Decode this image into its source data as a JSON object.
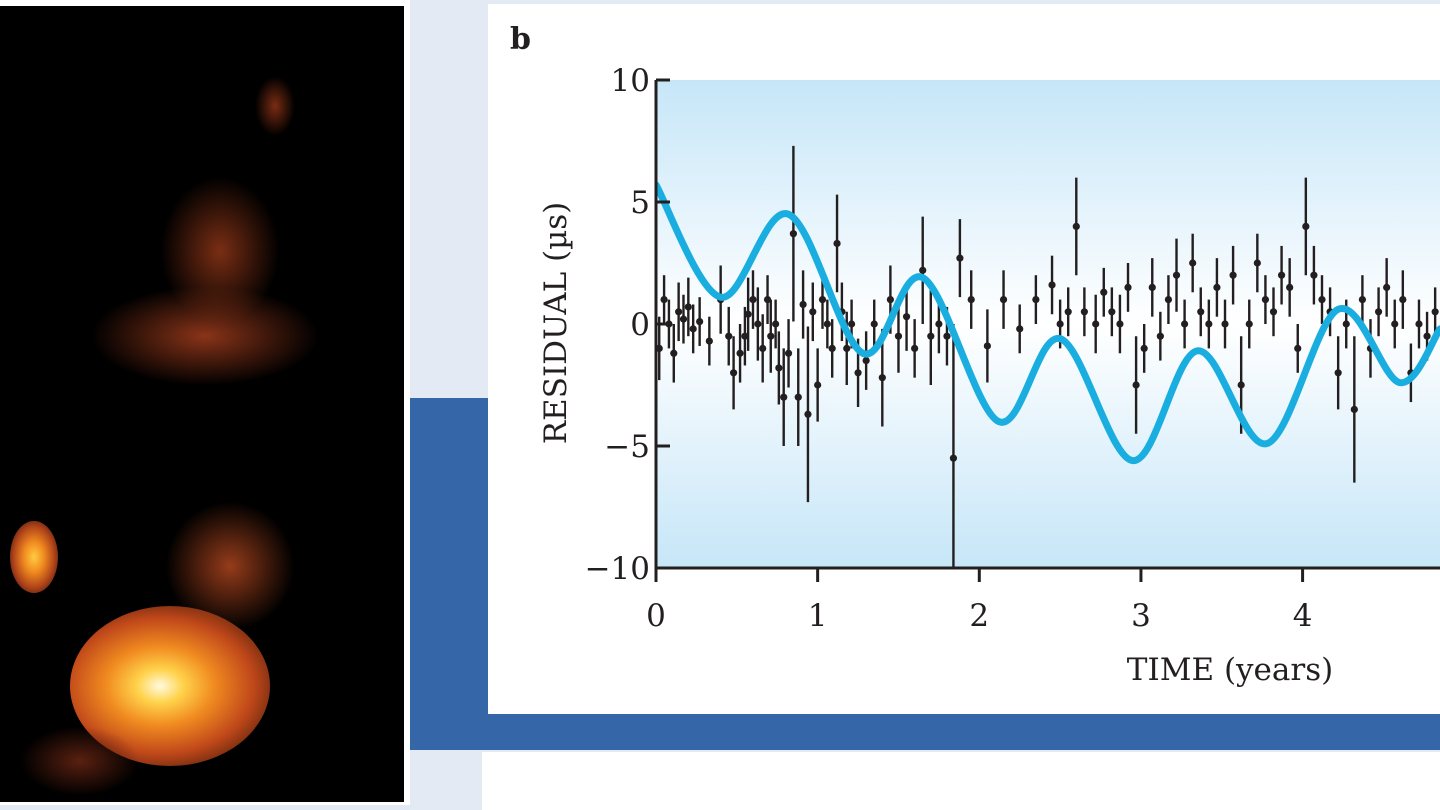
{
  "panel_label": "b",
  "colors": {
    "fit_curve": "#1aaee0",
    "data_points": "#231f20",
    "plot_bg_edge": "#c6e6f8",
    "plot_bg_center": "#ffffff",
    "slide_band": "#3466a8"
  },
  "chart_data": {
    "type": "scatter",
    "title": "",
    "xlabel": "TIME (years)",
    "ylabel": "RESIDUAL (µs)",
    "xlim": [
      0,
      4.85
    ],
    "ylim": [
      -10,
      10
    ],
    "xticks": [
      "0",
      "1",
      "2",
      "3",
      "4"
    ],
    "yticks": [
      "10",
      "5",
      "0",
      "−5",
      "−10"
    ],
    "xtick_values": [
      0,
      1,
      2,
      3,
      4
    ],
    "ytick_values": [
      10,
      5,
      0,
      -5,
      -10
    ],
    "grid": false,
    "legend": "none",
    "points": [
      {
        "x": 0.02,
        "y": -1.0,
        "err": 1.3
      },
      {
        "x": 0.05,
        "y": 1.0,
        "err": 1.0
      },
      {
        "x": 0.08,
        "y": 0.0,
        "err": 1.0
      },
      {
        "x": 0.11,
        "y": -1.2,
        "err": 1.2
      },
      {
        "x": 0.14,
        "y": 0.5,
        "err": 1.2
      },
      {
        "x": 0.17,
        "y": 0.2,
        "err": 1.0
      },
      {
        "x": 0.2,
        "y": 0.7,
        "err": 1.2
      },
      {
        "x": 0.23,
        "y": -0.2,
        "err": 1.0
      },
      {
        "x": 0.27,
        "y": 0.1,
        "err": 1.0
      },
      {
        "x": 0.33,
        "y": -0.7,
        "err": 1.0
      },
      {
        "x": 0.4,
        "y": 1.0,
        "err": 1.4
      },
      {
        "x": 0.45,
        "y": -0.5,
        "err": 1.2
      },
      {
        "x": 0.48,
        "y": -2.0,
        "err": 1.5
      },
      {
        "x": 0.52,
        "y": -1.2,
        "err": 1.2
      },
      {
        "x": 0.55,
        "y": -0.5,
        "err": 1.2
      },
      {
        "x": 0.57,
        "y": 0.4,
        "err": 1.5
      },
      {
        "x": 0.6,
        "y": 1.0,
        "err": 1.2
      },
      {
        "x": 0.63,
        "y": 0.0,
        "err": 1.5
      },
      {
        "x": 0.66,
        "y": -1.0,
        "err": 1.4
      },
      {
        "x": 0.69,
        "y": 1.0,
        "err": 1.0
      },
      {
        "x": 0.71,
        "y": -0.5,
        "err": 1.5
      },
      {
        "x": 0.74,
        "y": 0.0,
        "err": 1.0
      },
      {
        "x": 0.76,
        "y": -1.8,
        "err": 1.5
      },
      {
        "x": 0.79,
        "y": -3.0,
        "err": 2.0
      },
      {
        "x": 0.82,
        "y": -1.2,
        "err": 1.4
      },
      {
        "x": 0.85,
        "y": 3.7,
        "err": 3.6
      },
      {
        "x": 0.88,
        "y": -3.0,
        "err": 2.0
      },
      {
        "x": 0.91,
        "y": 0.8,
        "err": 1.4
      },
      {
        "x": 0.94,
        "y": -3.7,
        "err": 3.6
      },
      {
        "x": 0.97,
        "y": 0.5,
        "err": 1.2
      },
      {
        "x": 1.0,
        "y": -2.5,
        "err": 1.5
      },
      {
        "x": 1.03,
        "y": 1.0,
        "err": 1.2
      },
      {
        "x": 1.06,
        "y": 0.0,
        "err": 1.0
      },
      {
        "x": 1.09,
        "y": -1.0,
        "err": 1.2
      },
      {
        "x": 1.12,
        "y": 3.3,
        "err": 2.0
      },
      {
        "x": 1.15,
        "y": 0.5,
        "err": 1.2
      },
      {
        "x": 1.18,
        "y": -1.0,
        "err": 1.5
      },
      {
        "x": 1.21,
        "y": 0.0,
        "err": 1.0
      },
      {
        "x": 1.25,
        "y": -2.0,
        "err": 1.4
      },
      {
        "x": 1.3,
        "y": -1.5,
        "err": 1.2
      },
      {
        "x": 1.35,
        "y": 0.0,
        "err": 1.0
      },
      {
        "x": 1.4,
        "y": -2.2,
        "err": 2.0
      },
      {
        "x": 1.45,
        "y": 1.0,
        "err": 1.4
      },
      {
        "x": 1.5,
        "y": -0.5,
        "err": 1.5
      },
      {
        "x": 1.55,
        "y": 0.3,
        "err": 1.4
      },
      {
        "x": 1.6,
        "y": -1.0,
        "err": 1.2
      },
      {
        "x": 1.65,
        "y": 2.2,
        "err": 2.2
      },
      {
        "x": 1.7,
        "y": -0.5,
        "err": 2.0
      },
      {
        "x": 1.75,
        "y": 0.0,
        "err": 1.2
      },
      {
        "x": 1.8,
        "y": -0.5,
        "err": 1.2
      },
      {
        "x": 1.84,
        "y": -5.5,
        "err": 5.5
      },
      {
        "x": 1.88,
        "y": 2.7,
        "err": 1.6
      },
      {
        "x": 1.95,
        "y": 1.0,
        "err": 1.2
      },
      {
        "x": 2.05,
        "y": -0.9,
        "err": 1.5
      },
      {
        "x": 2.15,
        "y": 1.0,
        "err": 1.2
      },
      {
        "x": 2.25,
        "y": -0.2,
        "err": 1.0
      },
      {
        "x": 2.35,
        "y": 1.0,
        "err": 1.0
      },
      {
        "x": 2.45,
        "y": 1.6,
        "err": 1.2
      },
      {
        "x": 2.5,
        "y": 0.0,
        "err": 1.0
      },
      {
        "x": 2.55,
        "y": 0.5,
        "err": 1.0
      },
      {
        "x": 2.6,
        "y": 4.0,
        "err": 2.0
      },
      {
        "x": 2.65,
        "y": 0.5,
        "err": 1.0
      },
      {
        "x": 2.72,
        "y": 0.0,
        "err": 1.2
      },
      {
        "x": 2.77,
        "y": 1.3,
        "err": 1.0
      },
      {
        "x": 2.82,
        "y": 0.5,
        "err": 1.0
      },
      {
        "x": 2.87,
        "y": 0.0,
        "err": 1.2
      },
      {
        "x": 2.92,
        "y": 1.5,
        "err": 1.0
      },
      {
        "x": 2.97,
        "y": -2.5,
        "err": 2.0
      },
      {
        "x": 3.02,
        "y": -1.0,
        "err": 1.0
      },
      {
        "x": 3.07,
        "y": 1.5,
        "err": 1.2
      },
      {
        "x": 3.12,
        "y": -0.5,
        "err": 1.0
      },
      {
        "x": 3.17,
        "y": 1.0,
        "err": 1.0
      },
      {
        "x": 3.22,
        "y": 2.0,
        "err": 1.5
      },
      {
        "x": 3.27,
        "y": 0.0,
        "err": 1.0
      },
      {
        "x": 3.32,
        "y": 2.5,
        "err": 1.2
      },
      {
        "x": 3.37,
        "y": 0.5,
        "err": 1.0
      },
      {
        "x": 3.42,
        "y": 0.0,
        "err": 1.0
      },
      {
        "x": 3.47,
        "y": 1.5,
        "err": 1.2
      },
      {
        "x": 3.52,
        "y": 0.0,
        "err": 1.0
      },
      {
        "x": 3.57,
        "y": 2.0,
        "err": 1.2
      },
      {
        "x": 3.62,
        "y": -2.5,
        "err": 2.0
      },
      {
        "x": 3.67,
        "y": 0.0,
        "err": 1.0
      },
      {
        "x": 3.72,
        "y": 2.5,
        "err": 1.2
      },
      {
        "x": 3.77,
        "y": 1.0,
        "err": 1.0
      },
      {
        "x": 3.82,
        "y": 0.5,
        "err": 1.0
      },
      {
        "x": 3.87,
        "y": 2.0,
        "err": 1.2
      },
      {
        "x": 3.92,
        "y": 1.5,
        "err": 1.2
      },
      {
        "x": 3.97,
        "y": -1.0,
        "err": 1.0
      },
      {
        "x": 4.02,
        "y": 4.0,
        "err": 2.0
      },
      {
        "x": 4.07,
        "y": 2.0,
        "err": 1.2
      },
      {
        "x": 4.12,
        "y": 1.0,
        "err": 1.0
      },
      {
        "x": 4.17,
        "y": 0.5,
        "err": 1.0
      },
      {
        "x": 4.22,
        "y": -2.0,
        "err": 1.5
      },
      {
        "x": 4.27,
        "y": 0.0,
        "err": 1.0
      },
      {
        "x": 4.32,
        "y": -3.5,
        "err": 3.0
      },
      {
        "x": 4.37,
        "y": 1.0,
        "err": 1.0
      },
      {
        "x": 4.42,
        "y": -1.0,
        "err": 1.2
      },
      {
        "x": 4.47,
        "y": 0.5,
        "err": 1.0
      },
      {
        "x": 4.52,
        "y": 1.5,
        "err": 1.2
      },
      {
        "x": 4.57,
        "y": 0.0,
        "err": 1.0
      },
      {
        "x": 4.62,
        "y": 1.0,
        "err": 1.2
      },
      {
        "x": 4.67,
        "y": -2.0,
        "err": 1.2
      },
      {
        "x": 4.72,
        "y": 0.0,
        "err": 1.0
      },
      {
        "x": 4.77,
        "y": -0.5,
        "err": 1.0
      },
      {
        "x": 4.82,
        "y": 0.5,
        "err": 1.0
      }
    ],
    "fit_curve": {
      "x": [
        0.0,
        0.4,
        0.82,
        1.28,
        1.65,
        2.12,
        2.5,
        2.95,
        3.35,
        3.78,
        4.22,
        4.6,
        4.85
      ],
      "y": [
        5.7,
        1.1,
        4.5,
        -1.2,
        1.9,
        -4.0,
        -0.6,
        -5.6,
        -1.1,
        -4.9,
        0.6,
        -2.4,
        -0.2
      ]
    }
  }
}
